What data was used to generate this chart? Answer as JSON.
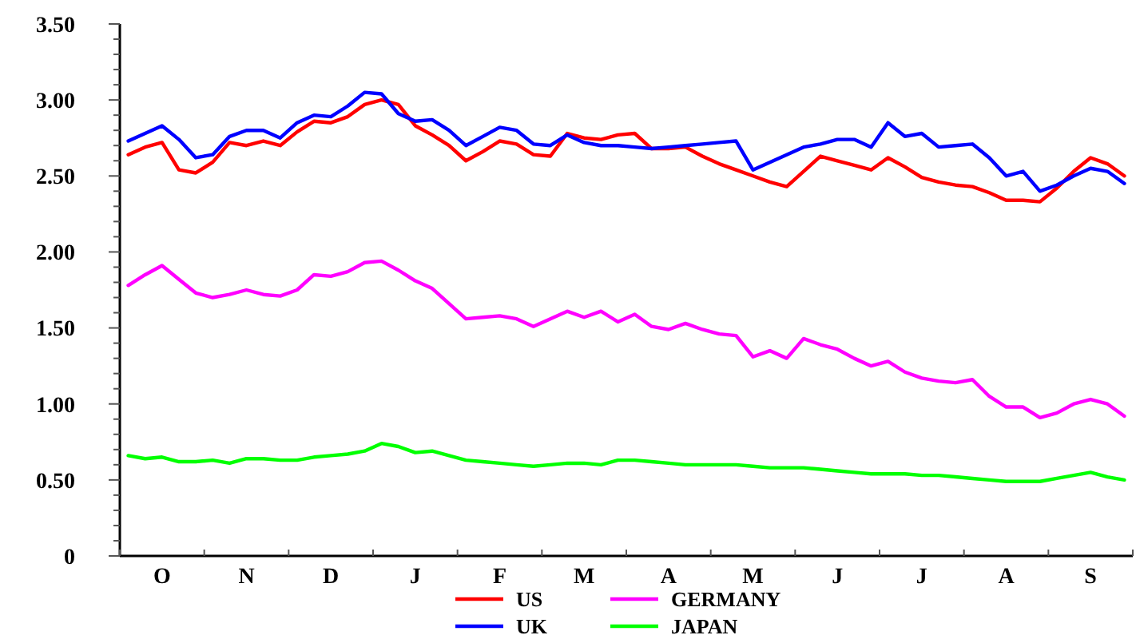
{
  "chart_data": {
    "type": "line",
    "legend": "bottom",
    "grid": false,
    "line_style": "solid",
    "marker": "none",
    "categories": [
      null,
      null,
      "O",
      null,
      null,
      null,
      null,
      "N",
      null,
      null,
      null,
      null,
      "D",
      null,
      null,
      null,
      null,
      "J",
      null,
      null,
      null,
      null,
      "F",
      null,
      null,
      null,
      null,
      "M",
      null,
      null,
      null,
      null,
      "A",
      null,
      null,
      null,
      null,
      "M",
      null,
      null,
      null,
      null,
      "J",
      null,
      null,
      null,
      null,
      "J",
      null,
      null,
      null,
      null,
      "A",
      null,
      null,
      null,
      null,
      "S",
      null,
      null
    ],
    "ylim": [
      0,
      3.5
    ],
    "yticks": [
      {
        "value": 0,
        "label": "0"
      },
      {
        "value": 0.5,
        "label": "0.50"
      },
      {
        "value": 1,
        "label": "1.00"
      },
      {
        "value": 1.5,
        "label": "1.50"
      },
      {
        "value": 2,
        "label": "2.00"
      },
      {
        "value": 2.5,
        "label": "2.50"
      },
      {
        "value": 3,
        "label": "3.00"
      },
      {
        "value": 3.5,
        "label": "3.50"
      }
    ],
    "series": [
      {
        "name": "US",
        "color": "#ff0000",
        "values": [
          2.64,
          2.69,
          2.72,
          2.54,
          2.52,
          2.59,
          2.72,
          2.7,
          2.73,
          2.7,
          2.79,
          2.86,
          2.85,
          2.89,
          2.97,
          3,
          2.97,
          2.83,
          2.77,
          2.7,
          2.6,
          2.66,
          2.73,
          2.71,
          2.64,
          2.63,
          2.78,
          2.75,
          2.74,
          2.77,
          2.78,
          2.68,
          2.68,
          2.69,
          2.63,
          2.58,
          2.54,
          2.5,
          2.46,
          2.43,
          2.53,
          2.63,
          2.6,
          2.57,
          2.54,
          2.62,
          2.56,
          2.49,
          2.46,
          2.44,
          2.43,
          2.39,
          2.34,
          2.34,
          2.33,
          2.42,
          2.53,
          2.62,
          2.58,
          2.5
        ]
      },
      {
        "name": "UK",
        "color": "#0000ff",
        "values": [
          2.73,
          2.78,
          2.83,
          2.74,
          2.62,
          2.64,
          2.76,
          2.8,
          2.8,
          2.75,
          2.85,
          2.9,
          2.89,
          2.96,
          3.05,
          3.04,
          2.91,
          2.86,
          2.87,
          2.8,
          2.7,
          2.76,
          2.82,
          2.8,
          2.71,
          2.7,
          2.77,
          2.72,
          2.7,
          2.7,
          2.69,
          2.68,
          2.69,
          2.7,
          2.71,
          2.72,
          2.73,
          2.54,
          2.59,
          2.64,
          2.69,
          2.71,
          2.74,
          2.74,
          2.69,
          2.85,
          2.76,
          2.78,
          2.69,
          2.7,
          2.71,
          2.62,
          2.5,
          2.53,
          2.4,
          2.44,
          2.5,
          2.55,
          2.53,
          2.45
        ]
      },
      {
        "name": "GERMANY",
        "color": "#ff00ff",
        "values": [
          1.78,
          1.85,
          1.91,
          1.82,
          1.73,
          1.7,
          1.72,
          1.75,
          1.72,
          1.71,
          1.75,
          1.85,
          1.84,
          1.87,
          1.93,
          1.94,
          1.88,
          1.81,
          1.76,
          1.66,
          1.56,
          1.57,
          1.58,
          1.56,
          1.51,
          1.56,
          1.61,
          1.57,
          1.61,
          1.54,
          1.59,
          1.51,
          1.49,
          1.53,
          1.49,
          1.46,
          1.45,
          1.31,
          1.35,
          1.3,
          1.43,
          1.39,
          1.36,
          1.3,
          1.25,
          1.28,
          1.21,
          1.17,
          1.15,
          1.14,
          1.16,
          1.05,
          0.98,
          0.98,
          0.91,
          0.94,
          1,
          1.03,
          1,
          0.92
        ]
      },
      {
        "name": "JAPAN",
        "color": "#00ff00",
        "values": [
          0.66,
          0.64,
          0.65,
          0.62,
          0.62,
          0.63,
          0.61,
          0.64,
          0.64,
          0.63,
          0.63,
          0.65,
          0.66,
          0.67,
          0.69,
          0.74,
          0.72,
          0.68,
          0.69,
          0.66,
          0.63,
          0.62,
          0.61,
          0.6,
          0.59,
          0.6,
          0.61,
          0.61,
          0.6,
          0.63,
          0.63,
          0.62,
          0.61,
          0.6,
          0.6,
          0.6,
          0.6,
          0.59,
          0.58,
          0.58,
          0.58,
          0.57,
          0.56,
          0.55,
          0.54,
          0.54,
          0.54,
          0.53,
          0.53,
          0.52,
          0.51,
          0.5,
          0.49,
          0.49,
          0.49,
          0.51,
          0.53,
          0.55,
          0.52,
          0.5
        ]
      }
    ]
  }
}
